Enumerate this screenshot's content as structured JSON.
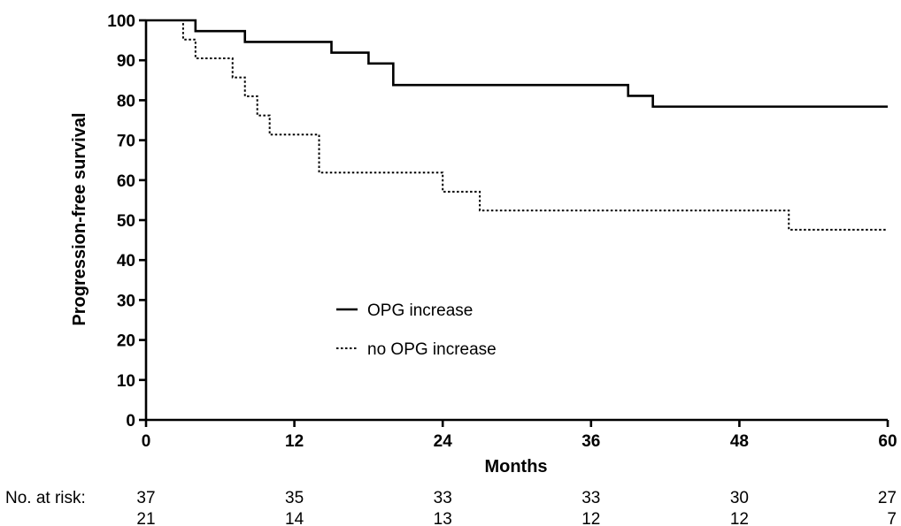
{
  "chart_data": {
    "type": "line",
    "subtype": "kaplan-meier step",
    "xlabel": "Months",
    "ylabel": "Progression-free survival",
    "xlim": [
      0,
      60
    ],
    "ylim": [
      0,
      100
    ],
    "x_ticks": [
      0,
      12,
      24,
      36,
      48,
      60
    ],
    "y_ticks": [
      0,
      10,
      20,
      30,
      40,
      50,
      60,
      70,
      80,
      90,
      100
    ],
    "grid": false,
    "legend_position": "center-left",
    "series": [
      {
        "name": "OPG increase",
        "line_style": "solid",
        "color": "#000000",
        "steps": [
          [
            0,
            100
          ],
          [
            4,
            97.3
          ],
          [
            8,
            94.6
          ],
          [
            15,
            91.9
          ],
          [
            18,
            89.2
          ],
          [
            20,
            83.8
          ],
          [
            39,
            81.1
          ],
          [
            41,
            78.4
          ],
          [
            60,
            78.4
          ]
        ]
      },
      {
        "name": "no OPG increase",
        "line_style": "dotted",
        "color": "#000000",
        "steps": [
          [
            0,
            100
          ],
          [
            3,
            95.2
          ],
          [
            4,
            90.5
          ],
          [
            7,
            85.7
          ],
          [
            8,
            81.0
          ],
          [
            9,
            76.2
          ],
          [
            10,
            71.4
          ],
          [
            14,
            61.9
          ],
          [
            24,
            57.1
          ],
          [
            27,
            52.4
          ],
          [
            52,
            47.6
          ],
          [
            60,
            47.6
          ]
        ]
      }
    ],
    "risk_table": {
      "label": "No. at risk:",
      "times": [
        0,
        12,
        24,
        36,
        48,
        60
      ],
      "rows": [
        [
          "37",
          "35",
          "33",
          "33",
          "30",
          "27"
        ],
        [
          "21",
          "14",
          "13",
          "12",
          "12",
          "7"
        ]
      ]
    }
  }
}
